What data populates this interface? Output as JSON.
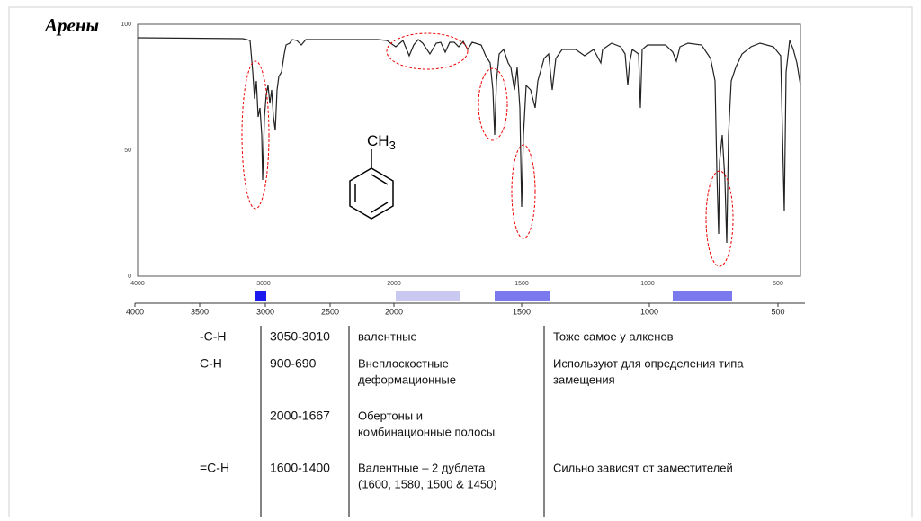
{
  "title": "Арены",
  "spectrum": {
    "y_labels": [
      "100",
      "50",
      "0"
    ],
    "top_x_labels": [
      "4000",
      "3000",
      "2000",
      "1500",
      "1000",
      "500"
    ],
    "bottom_x_labels": [
      "4000",
      "3500",
      "3000",
      "2500",
      "2000",
      "1500",
      "1000",
      "500"
    ],
    "molecule": {
      "base": "CH",
      "subscript": "3"
    }
  },
  "table": {
    "rows": [
      [
        [
          "-C-H"
        ],
        [
          "3050-3010"
        ],
        [
          "валентные"
        ],
        [
          "Тоже самое у алкенов"
        ]
      ],
      [
        [
          "C-H"
        ],
        [
          "900-690"
        ],
        [
          "Внеплоскостные",
          "деформационные"
        ],
        [
          "Используют для определения типа",
          "замещения"
        ]
      ],
      [
        null,
        [
          "2000-1667"
        ],
        [
          "Обертоны и",
          "комбинационные полосы"
        ],
        null
      ],
      [
        [
          "=C-H"
        ],
        [
          "1600-1400"
        ],
        [
          "Валентные – 2 дублета",
          "(1600, 1580, 1500 & 1450)"
        ],
        [
          "Сильно зависят от заместителей"
        ]
      ]
    ]
  }
}
